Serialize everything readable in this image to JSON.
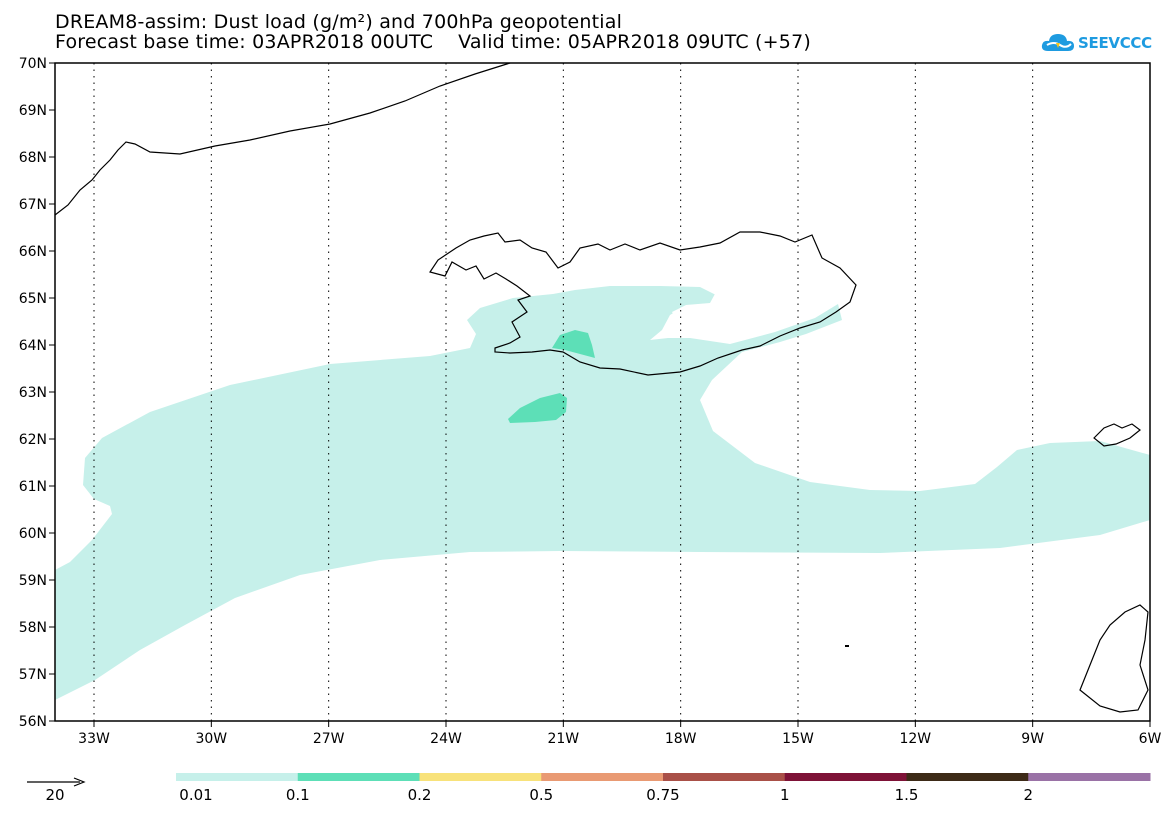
{
  "header": {
    "title_line1": "DREAM8-assim: Dust load (g/m²) and 700hPa geopotential",
    "title_line2": "Forecast base time: 03APR2018 00UTC    Valid time: 05APR2018 09UTC (+57)"
  },
  "logo": {
    "text": "SEEVCCC",
    "icon": "cloud-icon",
    "color": "#1e9be0"
  },
  "map": {
    "lat_labels": [
      "70N",
      "69N",
      "68N",
      "67N",
      "66N",
      "65N",
      "64N",
      "63N",
      "62N",
      "61N",
      "60N",
      "59N",
      "58N",
      "57N",
      "56N"
    ],
    "lon_labels": [
      "33W",
      "30W",
      "27W",
      "24W",
      "21W",
      "18W",
      "15W",
      "12W",
      "9W",
      "6W"
    ]
  },
  "legend": {
    "vector_label": "20",
    "levels": [
      "0.01",
      "0.1",
      "0.2",
      "0.5",
      "0.75",
      "1",
      "1.5",
      "2"
    ],
    "colors": [
      "#c6f0ea",
      "#5ddfb7",
      "#f8e27a",
      "#e99a73",
      "#a95048",
      "#7e1237",
      "#3d2a17",
      "#9a72a6"
    ]
  }
}
